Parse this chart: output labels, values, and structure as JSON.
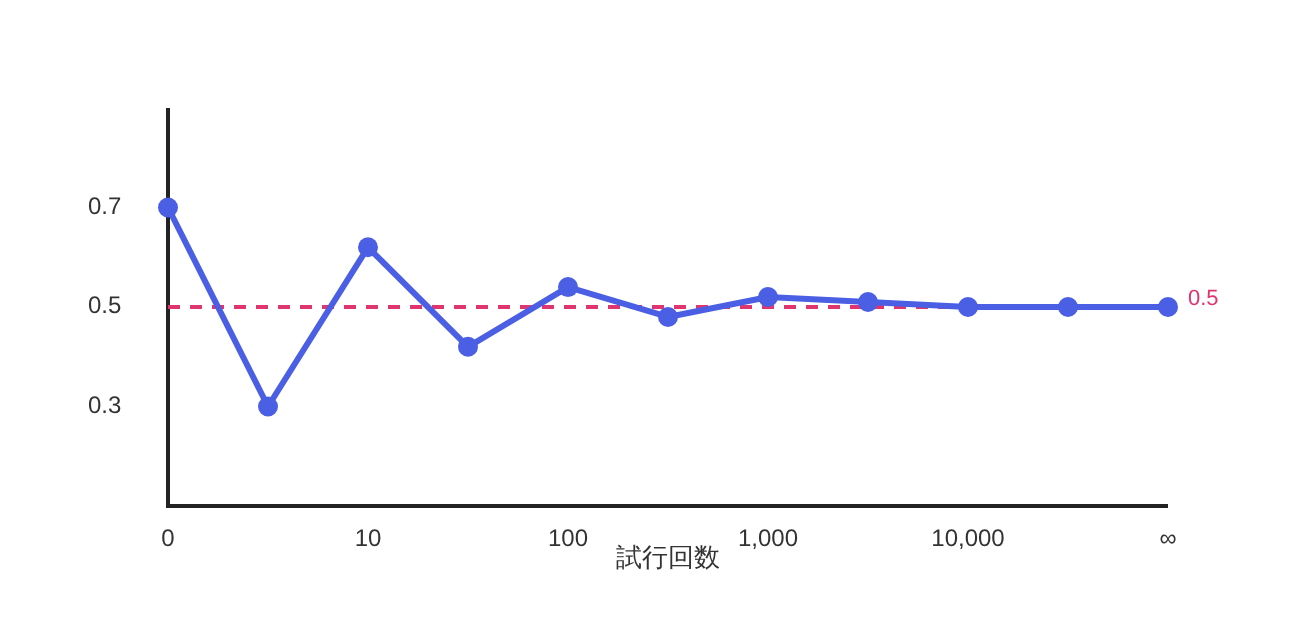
{
  "chart_data": {
    "type": "line",
    "xlabel": "試行回数",
    "categories": [
      "0",
      null,
      "10",
      null,
      "100",
      null,
      "1,000",
      null,
      "10,000",
      null,
      "∞"
    ],
    "series": [
      {
        "color": "#4a5fe3",
        "values": [
          0.7,
          0.3,
          0.62,
          0.42,
          0.54,
          0.48,
          0.52,
          0.51,
          0.5,
          0.5,
          0.5
        ]
      }
    ],
    "ylim": [
      0.1,
      0.9
    ],
    "yticks": [
      0.3,
      0.5,
      0.7
    ],
    "marker": "circle",
    "line_style": "solid",
    "ref_lines": [
      {
        "axis": "y",
        "value": 0.5,
        "label": "0.5",
        "color": "#e0356f",
        "line_style": "dashed"
      }
    ]
  }
}
